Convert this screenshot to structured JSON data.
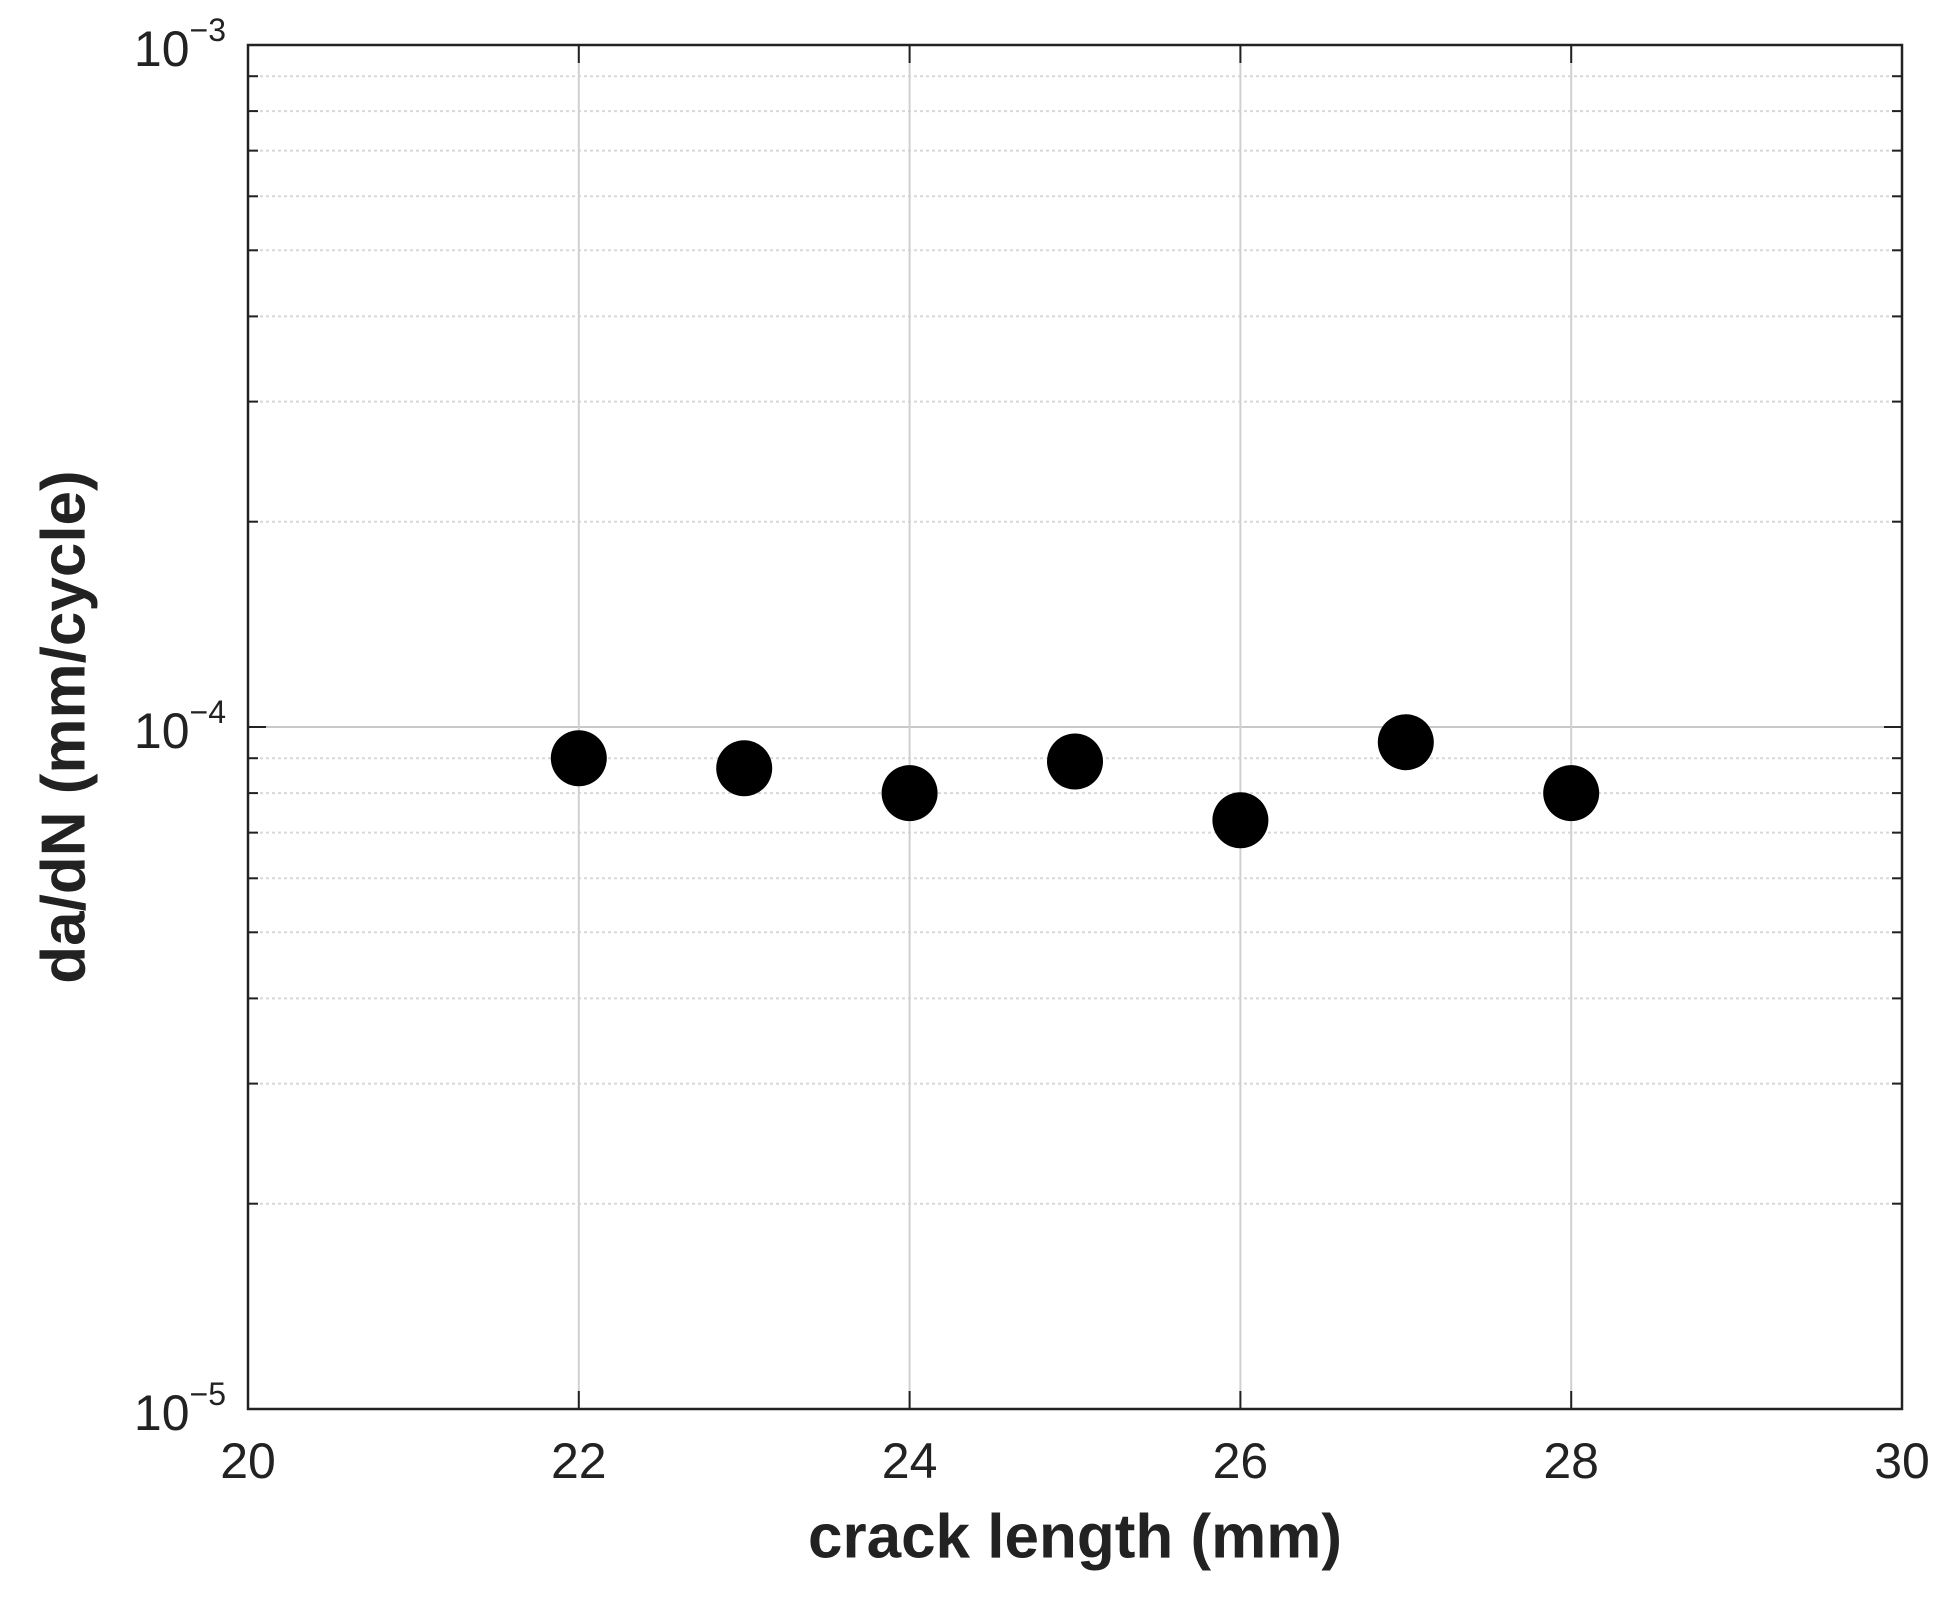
{
  "chart_data": {
    "type": "scatter",
    "x_label": "crack length (mm)",
    "y_label": "da/dN (mm/cycle)",
    "x": [
      22,
      23,
      24,
      25,
      26,
      27,
      28
    ],
    "series": [
      {
        "color": "#000000",
        "values": [
          9e-05,
          8.7e-05,
          8e-05,
          8.9e-05,
          7.3e-05,
          9.5e-05,
          8e-05
        ]
      }
    ],
    "xlim": [
      20,
      30
    ],
    "xticks": [
      20,
      22,
      24,
      26,
      28,
      30
    ],
    "ylim": [
      1e-05,
      0.001
    ],
    "y_scale": "log",
    "yticks": [
      {
        "value": 1e-05,
        "label": "10−5"
      },
      {
        "value": 0.0001,
        "label": "10−4"
      },
      {
        "value": 0.001,
        "label": "10−3"
      }
    ],
    "y_minor_ticks": [
      2e-05,
      3e-05,
      4e-05,
      5e-05,
      6e-05,
      7e-05,
      8e-05,
      9e-05,
      0.0002,
      0.0003,
      0.0004,
      0.0005,
      0.0006,
      0.0007,
      0.0008,
      0.0009
    ],
    "grid": true
  }
}
